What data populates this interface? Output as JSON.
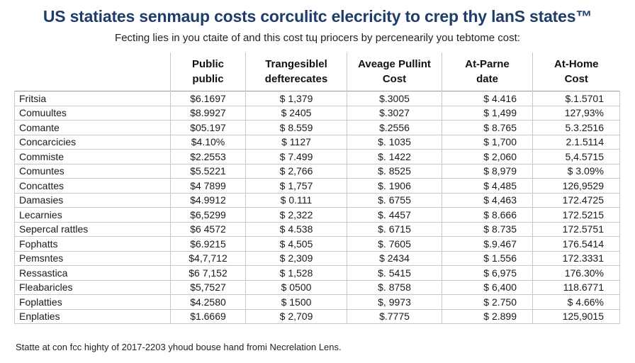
{
  "title": "US statiates senmaup costs corculitc elecricity to crep thy lanS states™",
  "subtitle": "Fecting lies in you ctaite of and this cost tɰ priocers by percenearily you tebtome cost:",
  "table": {
    "headers": [
      [
        "Public",
        "public"
      ],
      [
        "Trangesiblel",
        "defterecates"
      ],
      [
        "Aveage Pullint",
        "Cost"
      ],
      [
        "At-Parne",
        "date"
      ],
      [
        "At-Home",
        "Cost"
      ]
    ],
    "rows": [
      [
        "Fritsia",
        "$6.1697",
        "$ 1,379",
        "$.3005",
        "$ 4.416",
        "$.1.5701"
      ],
      [
        "Comuultes",
        "$8.9927",
        "$ 2405",
        "$.3027",
        "$ 1,499",
        "127,93%"
      ],
      [
        "Comante",
        "$05.197",
        "$ 8.559",
        "$.2556",
        "$ 8.765",
        "5.3.2516"
      ],
      [
        "Concarcicies",
        "$4.10%",
        "$ 1127",
        "$. 1035",
        "$ 1,700",
        "2.1.5114"
      ],
      [
        "Commiste",
        "$2.2553",
        "$ 7.499",
        "$. 1422",
        "$ 2,060",
        "5,4.5715"
      ],
      [
        "Comuntes",
        "$5.5221",
        "$ 2,766",
        "$. 8525",
        "$ 8,979",
        "$ 3.09%"
      ],
      [
        "Concattes",
        "$4 7899",
        "$ 1,757",
        "$. 1906",
        "$ 4,485",
        "126,9529"
      ],
      [
        "Damasies",
        "$4.9912",
        "$ 0.111",
        "$. 6755",
        "$ 4,463",
        "172.4725"
      ],
      [
        "Lecarnies",
        "$6,5299",
        "$ 2,322",
        "$. 4457",
        "$ 8.666",
        "172.5215"
      ],
      [
        "Sepercal rattles",
        "$6 4572",
        "$ 4.538",
        "$. 6715",
        "$ 8.735",
        "172.5751"
      ],
      [
        "Fophatts",
        "$6.9215",
        "$ 4,505",
        "$. 7605",
        "$.9.467",
        "176.5414"
      ],
      [
        "Pemsntes",
        "$4,7,712",
        "$ 2,309",
        "$ 2434",
        "$ 1.556",
        "172.3331"
      ],
      [
        "Ressastica",
        "$6 7,152",
        "$ 1,528",
        "$. 5415",
        "$ 6,975",
        "176.30%"
      ],
      [
        "Fleabaricles",
        "$5,7527",
        "$ 0500",
        "$. 8758",
        "$ 6,400",
        "118.6771"
      ],
      [
        "Foplatties",
        "$4.2580",
        "$ 1500",
        "$, 9973",
        "$ 2.750",
        "$ 4.66%"
      ],
      [
        "Enplaties",
        "$1.6669",
        "$ 2,709",
        "$.7775",
        "$ 2.899",
        "125,9015"
      ]
    ]
  },
  "footnote": "Statte at con fcc highty of 2017-2203 yhoud bouse hand fromi Necrelation Lens."
}
